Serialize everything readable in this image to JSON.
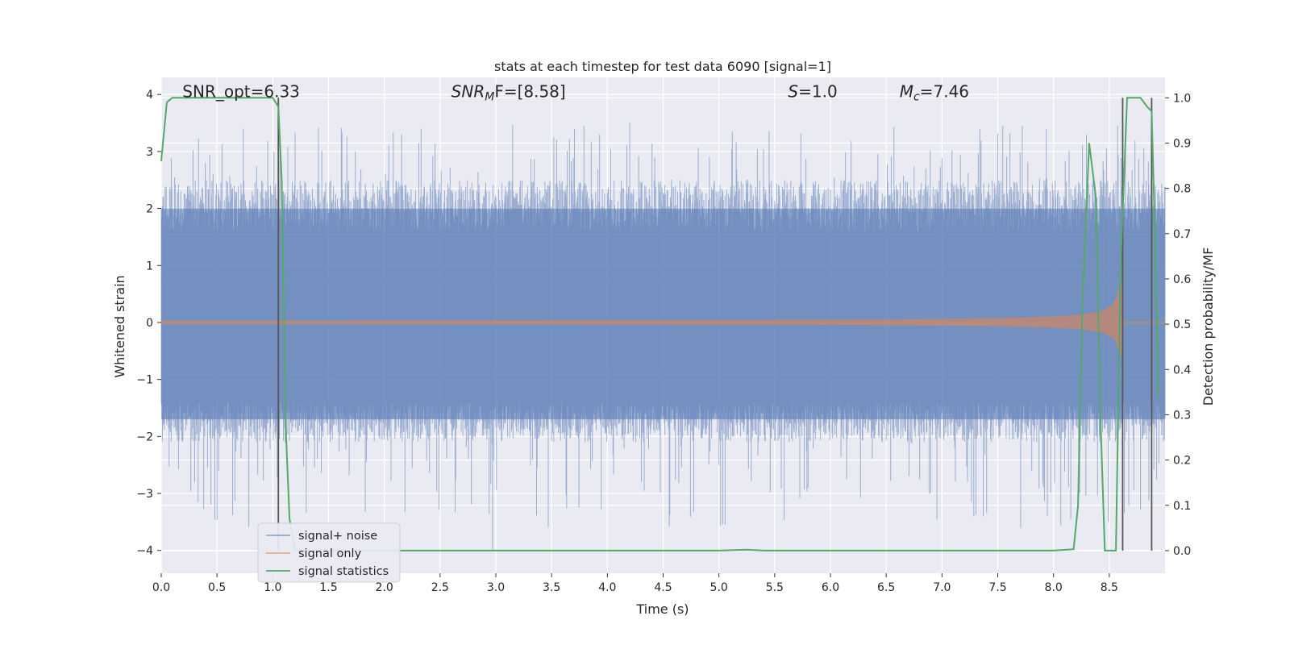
{
  "chart_data": {
    "type": "line",
    "title": "stats at each timestep for test data 6090 [signal=1]",
    "xlabel": "Time (s)",
    "ylabel": "Whitened strain",
    "y2label": "Detection probability/MF",
    "xlim": [
      0.0,
      9.0
    ],
    "ylim": [
      -4.4,
      4.3
    ],
    "y2lim": [
      -0.05,
      1.045
    ],
    "xticks": [
      "0.0",
      "0.5",
      "1.0",
      "1.5",
      "2.0",
      "2.5",
      "3.0",
      "3.5",
      "4.0",
      "4.5",
      "5.0",
      "5.5",
      "6.0",
      "6.5",
      "7.0",
      "7.5",
      "8.0",
      "8.5"
    ],
    "yticks": [
      "−4",
      "−3",
      "−2",
      "−1",
      "0",
      "1",
      "2",
      "3",
      "4"
    ],
    "y2ticks": [
      "0.0",
      "0.1",
      "0.2",
      "0.3",
      "0.4",
      "0.5",
      "0.6",
      "0.7",
      "0.8",
      "0.9",
      "1.0"
    ],
    "grid": true,
    "legend_position": "lower-left",
    "annotations": [
      {
        "id": "snr-opt",
        "text": "SNR_opt=6.33",
        "x": 0.19,
        "y": 4.05
      },
      {
        "id": "snr-mf",
        "label": "SNR",
        "sub": "M",
        "tail": "F=[8.58]",
        "x": 2.6,
        "y": 4.05
      },
      {
        "id": "s-stat",
        "label": "S",
        "tail": "=1.0",
        "x": 5.62,
        "y": 4.05
      },
      {
        "id": "mchirp",
        "label": "M",
        "sub": "c",
        "tail": "=7.46",
        "x": 6.62,
        "y": 4.05
      }
    ],
    "series": [
      {
        "name": "signal+ noise",
        "color": "#4c72b0",
        "opacity": 0.5,
        "noise_envelope": {
          "band_low": -1.7,
          "band_high": 2.0,
          "spike_min": -3.6,
          "spike_max": 3.5,
          "extremes": [
            [
              2.97,
              -4.0
            ],
            [
              3.52,
              3.25
            ],
            [
              7.72,
              3.45
            ]
          ]
        }
      },
      {
        "name": "signal only",
        "color": "#dd8452",
        "opacity": 0.6,
        "chirp": {
          "start": 0.0,
          "merger": 8.62,
          "amplitude_start": 0.02,
          "amplitude_peak": 0.7
        }
      },
      {
        "name": "signal statistics",
        "color": "#55a868",
        "axis": "right",
        "x": [
          0.0,
          0.05,
          0.1,
          0.2,
          0.3,
          0.5,
          0.7,
          0.9,
          1.0,
          1.05,
          1.08,
          1.1,
          1.12,
          1.15,
          1.2,
          2.0,
          3.0,
          4.0,
          5.0,
          5.25,
          5.4,
          6.0,
          7.0,
          8.0,
          8.18,
          8.22,
          8.26,
          8.32,
          8.38,
          8.42,
          8.46,
          8.5,
          8.56,
          8.6,
          8.66,
          8.72,
          8.78,
          8.84,
          8.88,
          8.91,
          8.94
        ],
        "y": [
          0.86,
          0.99,
          1.0,
          1.0,
          1.0,
          1.0,
          1.0,
          1.0,
          1.0,
          0.98,
          0.82,
          0.5,
          0.25,
          0.07,
          0.0,
          0.0,
          0.0,
          0.0,
          0.0,
          0.002,
          0.0,
          0.0,
          0.0,
          0.0,
          0.003,
          0.1,
          0.55,
          0.9,
          0.78,
          0.3,
          0.0,
          0.0,
          0.0,
          0.62,
          1.0,
          1.0,
          1.0,
          0.98,
          0.97,
          0.7,
          0.34
        ]
      }
    ],
    "vertical_markers": [
      {
        "x": 1.05,
        "y2_top": 1.0,
        "y2_bottom": 0.0
      },
      {
        "x": 8.62,
        "y2_top": 1.0,
        "y2_bottom": 0.0
      },
      {
        "x": 8.88,
        "y2_top": 1.0,
        "y2_bottom": 0.0
      }
    ]
  }
}
